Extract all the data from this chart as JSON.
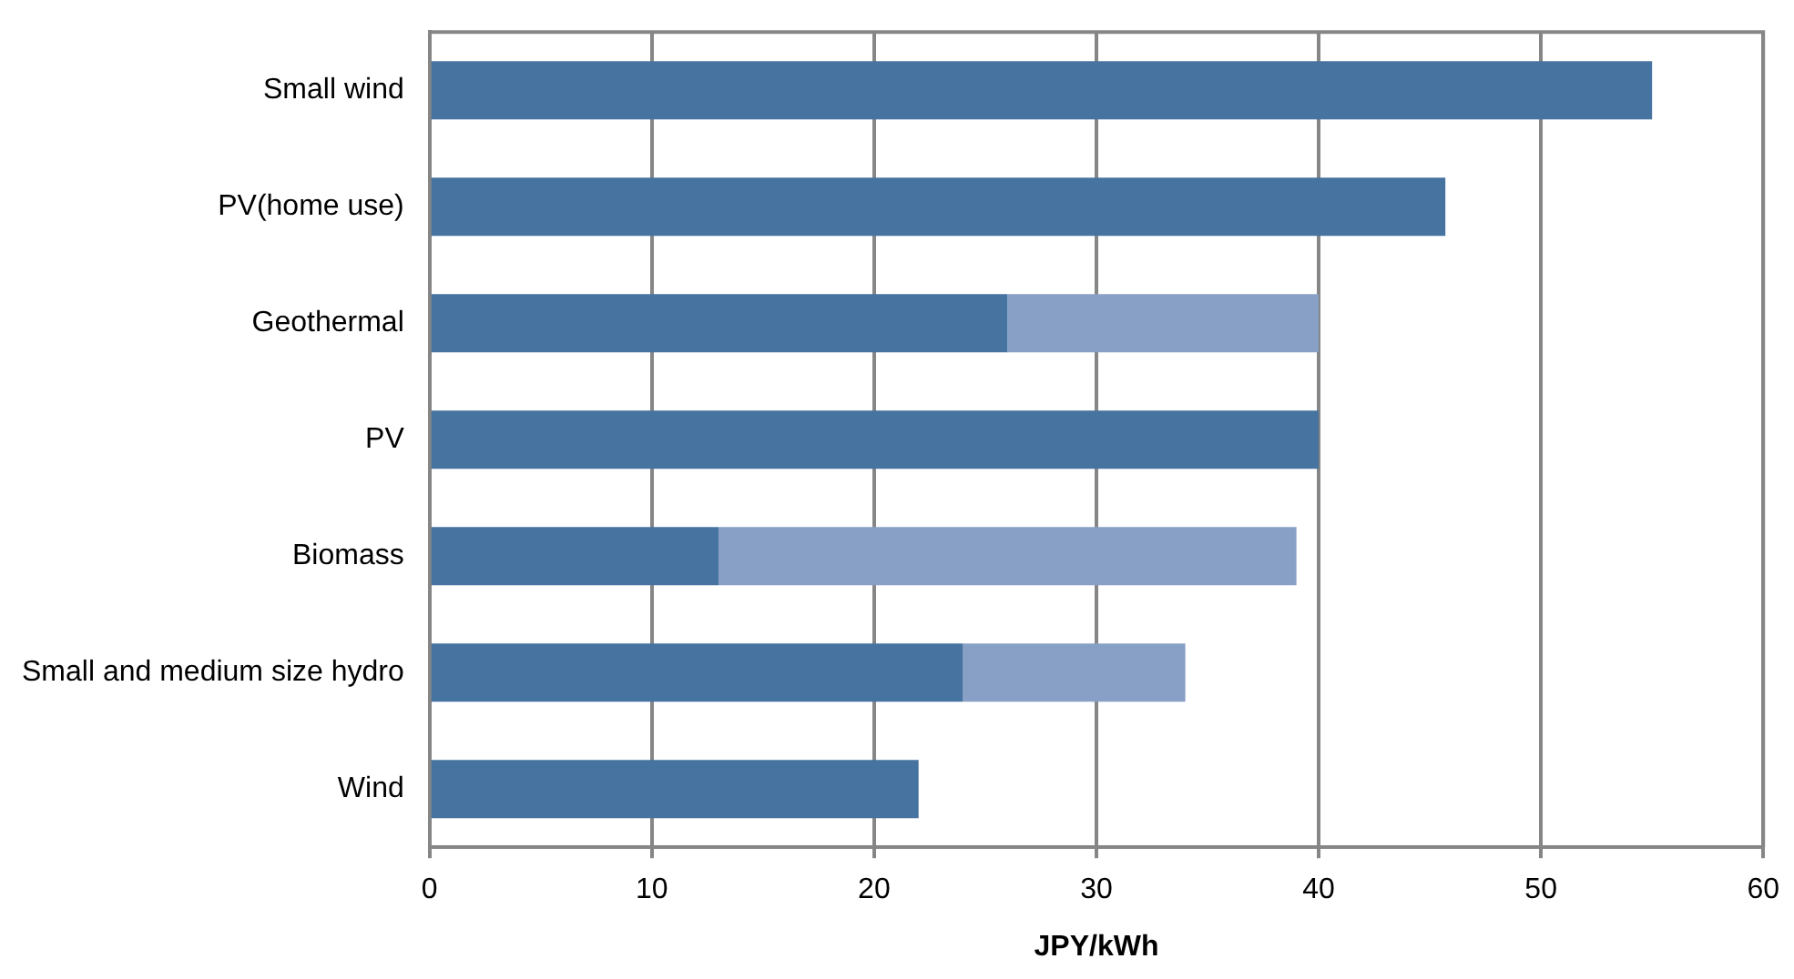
{
  "chart_data": {
    "type": "bar",
    "orientation": "horizontal",
    "stacked": true,
    "xlabel": "JPY/kWh",
    "categories": [
      "Small wind",
      "PV(home use)",
      "Geothermal",
      "PV",
      "Biomass",
      "Small and medium size hydro",
      "Wind"
    ],
    "series": [
      {
        "color": "#4673a0",
        "values": [
          55,
          45.7,
          26,
          40,
          13,
          24,
          22
        ]
      },
      {
        "color": "#88a0c6",
        "values": [
          null,
          null,
          14,
          null,
          26,
          10,
          null
        ]
      }
    ],
    "xlim": [
      0,
      60
    ],
    "xticks": [
      0,
      10,
      20,
      30,
      40,
      50,
      60
    ],
    "grid": "x",
    "legend": false
  }
}
